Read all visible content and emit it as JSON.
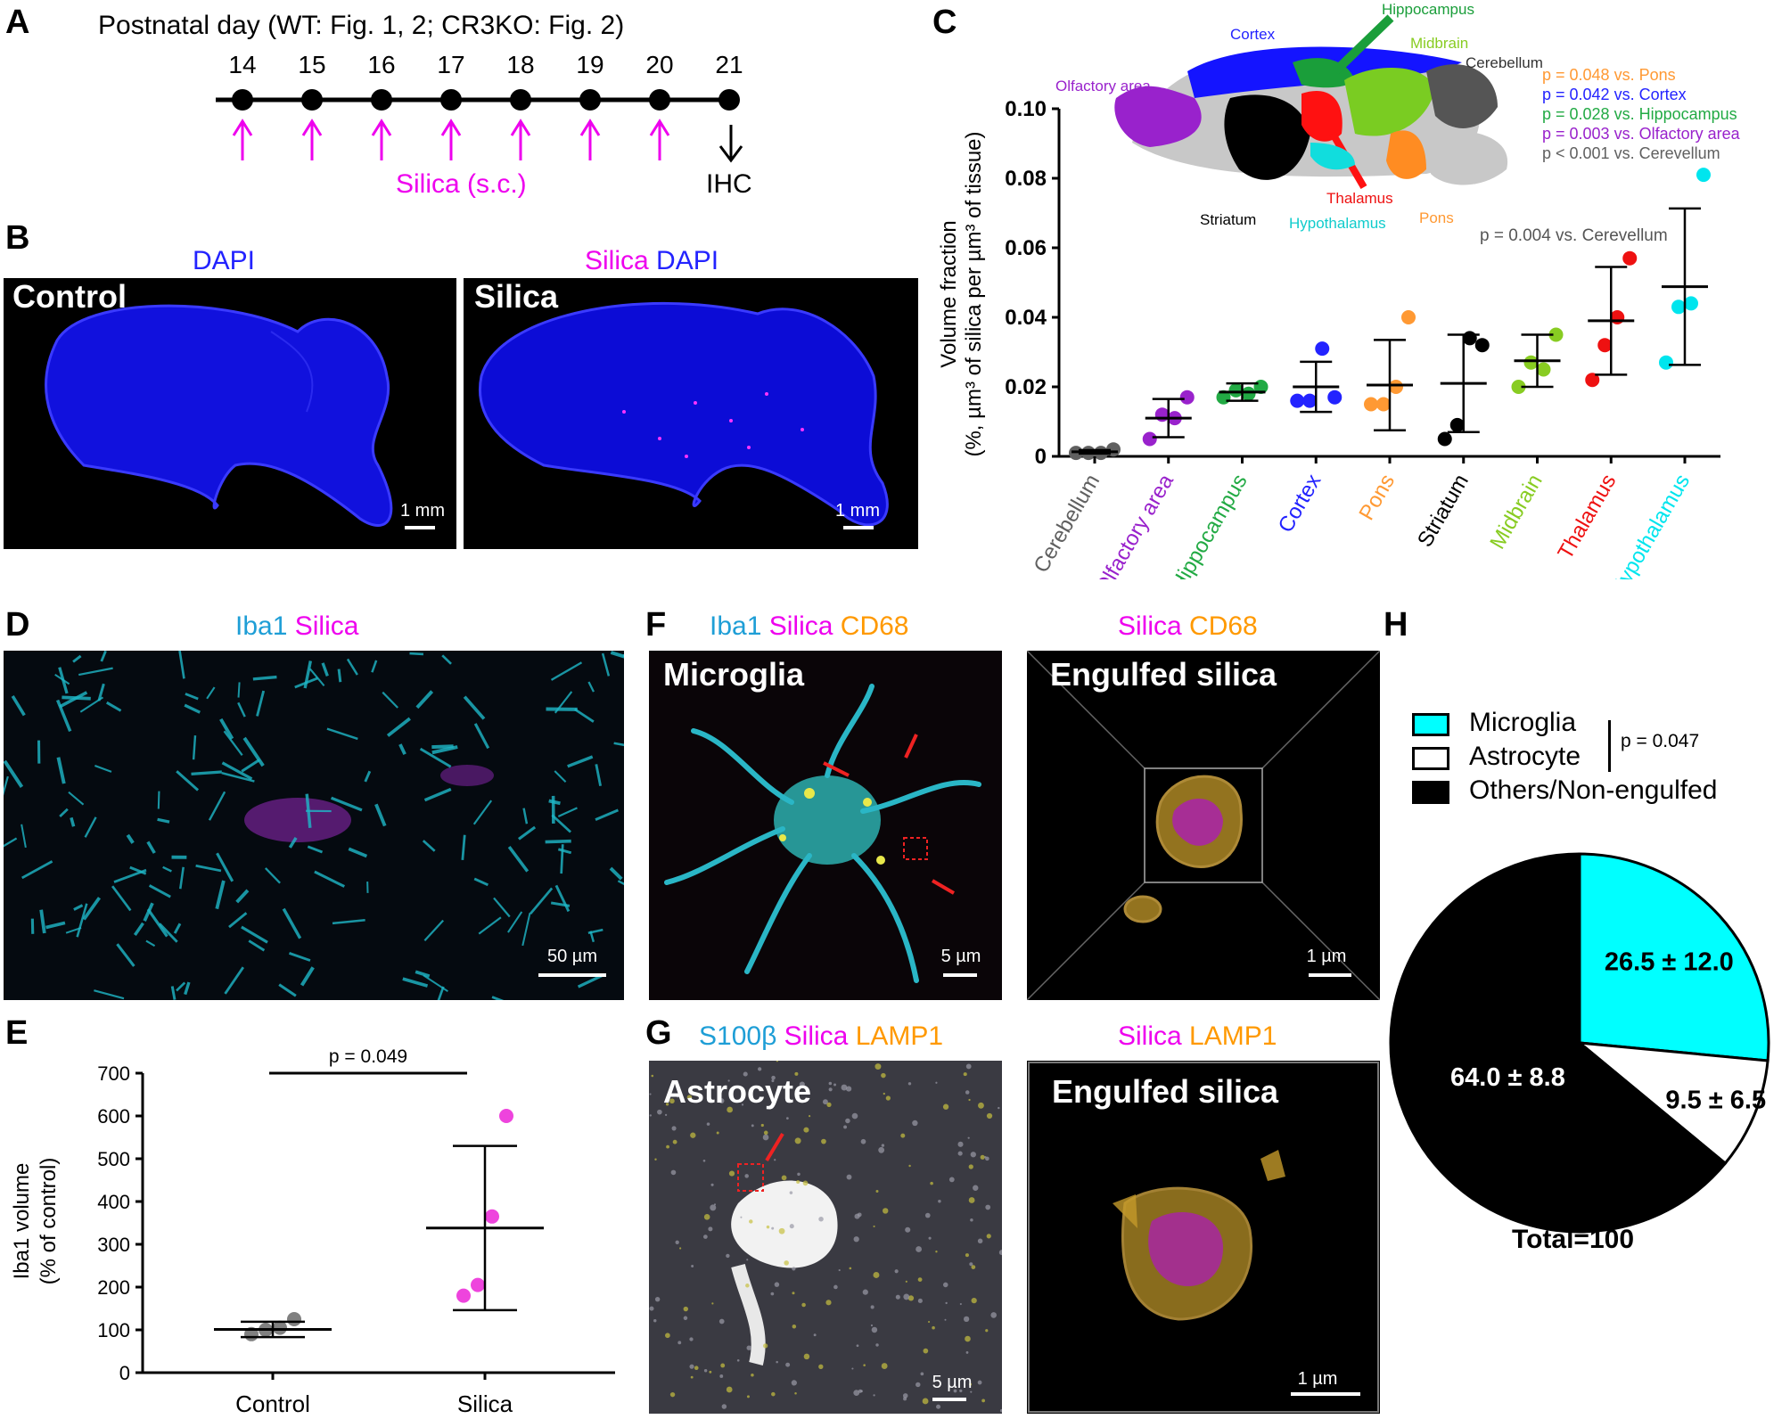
{
  "colors": {
    "magenta": "#ee00ee",
    "blue": "#2323ff",
    "cyan": "#00e5ee",
    "orange": "#ff9933",
    "red": "#ee1111",
    "green": "#22aa44",
    "lime": "#88cc22",
    "purple": "#9922cc",
    "gray": "#606060",
    "iba1": "#1e9ed6",
    "cd68": "#ff9900"
  },
  "panels": {
    "A": {
      "letter": "A",
      "title": "Postnatal day (WT: Fig. 1, 2; CR3KO: Fig. 2)",
      "days": [
        "14",
        "15",
        "16",
        "17",
        "18",
        "19",
        "20",
        "21"
      ],
      "injection_label": "Silica (s.c.)",
      "end_label": "IHC"
    },
    "B": {
      "letter": "B",
      "left_channels": [
        "DAPI"
      ],
      "right_channels": [
        "Silica",
        "DAPI"
      ],
      "left_label": "Control",
      "right_label": "Silica",
      "scale": "1 mm"
    },
    "C": {
      "letter": "C",
      "ylabel_line1": "Volume fraction",
      "ylabel_line2": "(%, µm³ of silica per µm³ of tissue)",
      "brain_regions": {
        "cortex": "Cortex",
        "hippocampus": "Hippocampus",
        "midbrain": "Midbrain",
        "cerebellum": "Cerebellum",
        "olfactory": "Olfactory area",
        "striatum": "Striatum",
        "hypothalamus": "Hypothalamus",
        "thalamus": "Thalamus",
        "pons": "Pons"
      },
      "pvalues": [
        {
          "text": "p = 0.048 vs. Pons",
          "color": "#ff9933"
        },
        {
          "text": "p = 0.042 vs. Cortex",
          "color": "#2323ff"
        },
        {
          "text": "p = 0.028 vs. Hippocampus",
          "color": "#22aa44"
        },
        {
          "text": "p = 0.003 vs. Olfactory area",
          "color": "#9922cc"
        },
        {
          "text": "p < 0.001 vs. Cerevellum",
          "color": "#606060"
        }
      ],
      "pvalue_extra": "p = 0.004 vs. Cerevellum"
    },
    "D": {
      "letter": "D",
      "channels": [
        "Iba1",
        "Silica"
      ],
      "scale": "50 µm"
    },
    "E": {
      "letter": "E",
      "ylabel_line1": "Iba1 volume",
      "ylabel_line2": "(% of control)",
      "pvalue": "p = 0.049"
    },
    "F": {
      "letter": "F",
      "left_channels": [
        "Iba1",
        "Silica",
        "CD68"
      ],
      "right_channels": [
        "Silica",
        "CD68"
      ],
      "left_label": "Microglia",
      "right_label": "Engulfed silica",
      "left_scale": "5 µm",
      "right_scale": "1 µm"
    },
    "G": {
      "letter": "G",
      "left_channels": [
        "S100β",
        "Silica",
        "LAMP1"
      ],
      "right_channels": [
        "Silica",
        "LAMP1"
      ],
      "left_label": "Astrocyte",
      "right_label": "Engulfed silica",
      "left_scale": "5 µm",
      "right_scale": "1 µm"
    },
    "H": {
      "letter": "H",
      "legend": [
        "Microglia",
        "Astrocyte",
        "Others/Non-engulfed"
      ],
      "pvalue": "p = 0.047",
      "slice_labels": [
        "26.5 ± 12.0",
        "9.5 ± 6.5",
        "64.0 ± 8.8"
      ],
      "total": "Total=100"
    }
  },
  "chart_data": [
    {
      "panel": "C",
      "type": "scatter",
      "categories": [
        "Cerebellum",
        "Olfactory area",
        "Hippocampus",
        "Cortex",
        "Pons",
        "Striatum",
        "Midbrain",
        "Thalamus",
        "Hypothalamus"
      ],
      "category_colors": [
        "#606060",
        "#9922cc",
        "#22aa44",
        "#2323ff",
        "#ff9933",
        "#000000",
        "#88cc22",
        "#ee1111",
        "#00e5ee"
      ],
      "points": [
        [
          0.001,
          0.001,
          0.001,
          0.002
        ],
        [
          0.005,
          0.012,
          0.011,
          0.017
        ],
        [
          0.017,
          0.019,
          0.018,
          0.02
        ],
        [
          0.016,
          0.016,
          0.031,
          0.017
        ],
        [
          0.015,
          0.015,
          0.02,
          0.04
        ],
        [
          0.005,
          0.009,
          0.034,
          0.032
        ],
        [
          0.02,
          0.027,
          0.025,
          0.035
        ],
        [
          0.022,
          0.032,
          0.04,
          0.057
        ],
        [
          0.027,
          0.043,
          0.044,
          0.081
        ]
      ],
      "mean": [
        0.0013,
        0.011,
        0.0185,
        0.02,
        0.0205,
        0.021,
        0.0275,
        0.039,
        0.0488
      ],
      "sd": [
        0.0005,
        0.0055,
        0.0025,
        0.0072,
        0.013,
        0.014,
        0.0075,
        0.0155,
        0.0225
      ],
      "yticks": [
        "0",
        "0.02",
        "0.04",
        "0.06",
        "0.08",
        "0.10"
      ],
      "ylim": [
        0,
        0.1
      ]
    },
    {
      "panel": "E",
      "type": "scatter",
      "categories": [
        "Control",
        "Silica"
      ],
      "category_colors": [
        "#808080",
        "#ee44dd"
      ],
      "points": [
        [
          90,
          100,
          105,
          125
        ],
        [
          180,
          205,
          365,
          600
        ]
      ],
      "mean": [
        101,
        338
      ],
      "sd": [
        18,
        192
      ],
      "yticks": [
        "0",
        "100",
        "200",
        "300",
        "400",
        "500",
        "600",
        "700"
      ],
      "ylim": [
        0,
        700
      ]
    },
    {
      "panel": "H",
      "type": "pie",
      "labels": [
        "Microglia",
        "Astrocyte",
        "Others/Non-engulfed"
      ],
      "values": [
        26.5,
        9.5,
        64.0
      ],
      "colors": [
        "#00ffff",
        "#ffffff",
        "#000000"
      ]
    }
  ]
}
